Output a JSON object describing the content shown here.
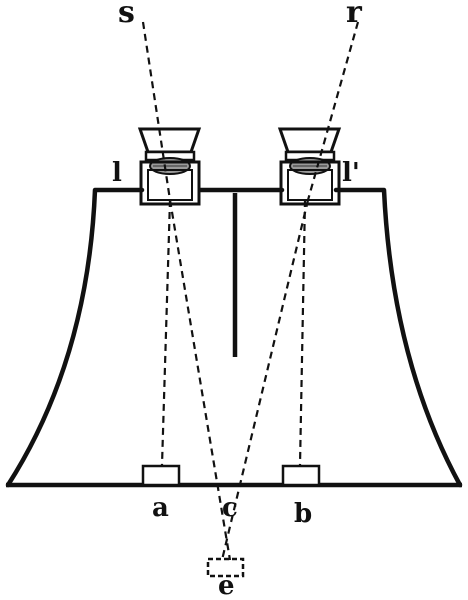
{
  "figure": {
    "labels": {
      "s": "s",
      "r": "r",
      "l": "l",
      "l_prime": "l'",
      "a": "a",
      "b": "b",
      "c": "c",
      "e": "e"
    },
    "colors": {
      "ink": "#111111",
      "paper": "#ffffff"
    }
  }
}
